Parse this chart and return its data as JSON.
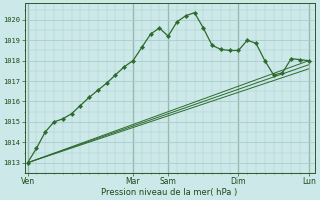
{
  "bg_color": "#cce8e8",
  "grid_color": "#aacccc",
  "line_color": "#2d6a2d",
  "marker_color": "#2d6a2d",
  "xlabel": "Pression niveau de la mer( hPa )",
  "ylim": [
    1012.5,
    1020.8
  ],
  "yticks": [
    1013,
    1014,
    1015,
    1016,
    1017,
    1018,
    1019,
    1020
  ],
  "xtick_labels": [
    "Ven",
    "Mar",
    "Sam",
    "Dim",
    "Lun"
  ],
  "xtick_positions": [
    0,
    72,
    96,
    144,
    192
  ],
  "vlines": [
    0,
    72,
    96,
    144,
    192
  ],
  "series1_x": [
    0,
    6,
    12,
    18,
    24,
    30,
    36,
    42,
    48,
    54,
    60,
    66,
    72,
    78,
    84,
    90,
    96,
    102,
    108,
    114,
    120,
    126,
    132,
    138,
    144,
    150,
    156,
    162,
    168,
    174,
    180,
    186,
    192
  ],
  "series1_y": [
    1013.0,
    1013.7,
    1014.5,
    1015.0,
    1015.15,
    1015.4,
    1015.8,
    1016.2,
    1016.55,
    1016.9,
    1017.3,
    1017.7,
    1018.0,
    1018.65,
    1019.3,
    1019.6,
    1019.2,
    1019.9,
    1020.2,
    1020.35,
    1019.6,
    1018.75,
    1018.55,
    1018.5,
    1018.5,
    1019.0,
    1018.85,
    1018.0,
    1017.3,
    1017.4,
    1018.1,
    1018.05,
    1018.0
  ],
  "straight_lines": [
    {
      "x": [
        0,
        192
      ],
      "y": [
        1013.0,
        1018.0
      ]
    },
    {
      "x": [
        0,
        192
      ],
      "y": [
        1013.0,
        1017.8
      ]
    },
    {
      "x": [
        0,
        192
      ],
      "y": [
        1013.0,
        1017.6
      ]
    }
  ]
}
